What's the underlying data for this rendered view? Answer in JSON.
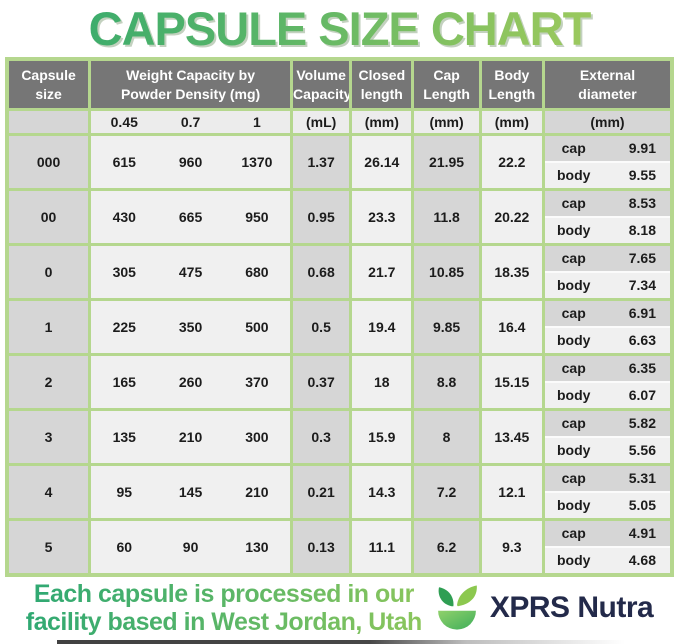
{
  "title": "CAPSULE SIZE CHART",
  "colors": {
    "table_border_green": "#b5d78e",
    "header_gray": "#767676",
    "cell_gray": "#d6d6d6",
    "cell_light": "#f0f0f0",
    "title_gradient_start": "#2fa86e",
    "title_gradient_end": "#abce5c",
    "brand_navy": "#232a4a",
    "footer_green_start": "#2ea873",
    "footer_green_end": "#8cc65c"
  },
  "table": {
    "header": {
      "capsule_size": "Capsule size",
      "weight": "Weight Capacity by\nPowder Density (mg)",
      "volume": "Volume\nCapacity",
      "closed": "Closed\nlength",
      "cap": "Cap\nLength",
      "body": "Body\nLength",
      "external": "External\ndiameter"
    },
    "units": {
      "densities": [
        "0.45",
        "0.7",
        "1"
      ],
      "volume": "(mL)",
      "closed": "(mm)",
      "cap": "(mm)",
      "body": "(mm)",
      "external": "(mm)"
    },
    "rows": [
      {
        "size": "000",
        "w045": "615",
        "w07": "960",
        "w1": "1370",
        "volume": "1.37",
        "closed": "26.14",
        "cap_len": "21.95",
        "body_len": "22.2",
        "cap_label": "cap",
        "cap_dia": "9.91",
        "body_label": "body",
        "body_dia": "9.55"
      },
      {
        "size": "00",
        "w045": "430",
        "w07": "665",
        "w1": "950",
        "volume": "0.95",
        "closed": "23.3",
        "cap_len": "11.8",
        "body_len": "20.22",
        "cap_label": "cap",
        "cap_dia": "8.53",
        "body_label": "body",
        "body_dia": "8.18"
      },
      {
        "size": "0",
        "w045": "305",
        "w07": "475",
        "w1": "680",
        "volume": "0.68",
        "closed": "21.7",
        "cap_len": "10.85",
        "body_len": "18.35",
        "cap_label": "cap",
        "cap_dia": "7.65",
        "body_label": "body",
        "body_dia": "7.34"
      },
      {
        "size": "1",
        "w045": "225",
        "w07": "350",
        "w1": "500",
        "volume": "0.5",
        "closed": "19.4",
        "cap_len": "9.85",
        "body_len": "16.4",
        "cap_label": "cap",
        "cap_dia": "6.91",
        "body_label": "body",
        "body_dia": "6.63"
      },
      {
        "size": "2",
        "w045": "165",
        "w07": "260",
        "w1": "370",
        "volume": "0.37",
        "closed": "18",
        "cap_len": "8.8",
        "body_len": "15.15",
        "cap_label": "cap",
        "cap_dia": "6.35",
        "body_label": "body",
        "body_dia": "6.07"
      },
      {
        "size": "3",
        "w045": "135",
        "w07": "210",
        "w1": "300",
        "volume": "0.3",
        "closed": "15.9",
        "cap_len": "8",
        "body_len": "13.45",
        "cap_label": "cap",
        "cap_dia": "5.82",
        "body_label": "body",
        "body_dia": "5.56"
      },
      {
        "size": "4",
        "w045": "95",
        "w07": "145",
        "w1": "210",
        "volume": "0.21",
        "closed": "14.3",
        "cap_len": "7.2",
        "body_len": "12.1",
        "cap_label": "cap",
        "cap_dia": "5.31",
        "body_label": "body",
        "body_dia": "5.05"
      },
      {
        "size": "5",
        "w045": "60",
        "w07": "90",
        "w1": "130",
        "volume": "0.13",
        "closed": "11.1",
        "cap_len": "6.2",
        "body_len": "9.3",
        "cap_label": "cap",
        "cap_dia": "4.91",
        "body_label": "body",
        "body_dia": "4.68"
      }
    ]
  },
  "footer": {
    "note_line1": "Each capsule is processed in our",
    "note_line2": "facility based in West Jordan, Utah",
    "brand": "XPRS Nutra"
  },
  "chart_data": {
    "type": "table",
    "title": "CAPSULE SIZE CHART",
    "columns": [
      "Capsule size",
      "Weight Capacity (mg) @ density 0.45",
      "Weight Capacity (mg) @ density 0.7",
      "Weight Capacity (mg) @ density 1",
      "Volume Capacity (mL)",
      "Closed length (mm)",
      "Cap Length (mm)",
      "Body Length (mm)",
      "External diameter cap (mm)",
      "External diameter body (mm)"
    ],
    "rows": [
      [
        "000",
        615,
        960,
        1370,
        1.37,
        26.14,
        21.95,
        22.2,
        9.91,
        9.55
      ],
      [
        "00",
        430,
        665,
        950,
        0.95,
        23.3,
        11.8,
        20.22,
        8.53,
        8.18
      ],
      [
        "0",
        305,
        475,
        680,
        0.68,
        21.7,
        10.85,
        18.35,
        7.65,
        7.34
      ],
      [
        "1",
        225,
        350,
        500,
        0.5,
        19.4,
        9.85,
        16.4,
        6.91,
        6.63
      ],
      [
        "2",
        165,
        260,
        370,
        0.37,
        18,
        8.8,
        15.15,
        6.35,
        6.07
      ],
      [
        "3",
        135,
        210,
        300,
        0.3,
        15.9,
        8,
        13.45,
        5.82,
        5.56
      ],
      [
        "4",
        95,
        145,
        210,
        0.21,
        14.3,
        7.2,
        12.1,
        5.31,
        5.05
      ],
      [
        "5",
        60,
        90,
        130,
        0.13,
        11.1,
        6.2,
        9.3,
        4.91,
        4.68
      ]
    ]
  }
}
